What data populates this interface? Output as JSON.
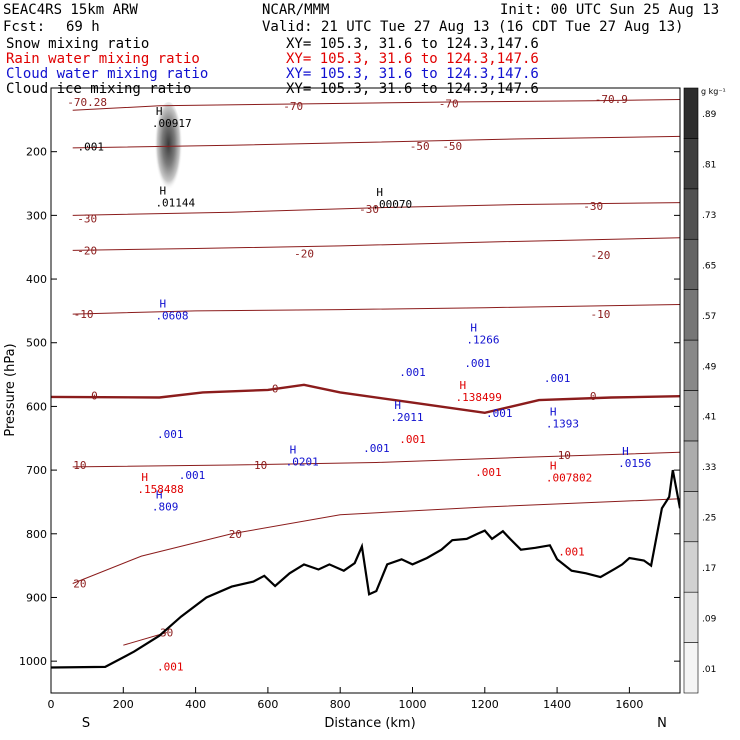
{
  "header": {
    "model": "SEAC4RS 15km ARW",
    "center": "NCAR/MMM",
    "init": "Init: 00 UTC Sun 25 Aug 13",
    "fcst_label": "Fcst:",
    "fcst_hours": "69 h",
    "valid": "Valid: 21 UTC Tue 27 Aug 13 (16 CDT Tue 27 Aug 13)",
    "fields": [
      {
        "label": "Snow mixing ratio",
        "xy": "",
        "color": "#000000"
      },
      {
        "label": "Rain water mixing ratio",
        "xy": "XY= 105.3, 31.6 to 124.3,147.6",
        "color": "#e00000"
      },
      {
        "label": "Cloud water mixing ratio",
        "xy": "XY= 105.3, 31.6 to 124.3,147.6",
        "color": "#1010d0"
      },
      {
        "label": "Cloud ice mixing ratio",
        "xy": "XY= 105.3, 31.6 to 124.3,147.6",
        "color": "#000000"
      }
    ],
    "snow_xy": "XY= 105.3, 31.6 to 124.3,147.6"
  },
  "chart_data": {
    "type": "contour-cross-section",
    "xlabel": "Distance (km)",
    "ylabel": "Pressure (hPa)",
    "xlim": [
      0,
      1740
    ],
    "ylim": [
      1050,
      100
    ],
    "x_ticks": [
      0,
      200,
      400,
      600,
      800,
      1000,
      1200,
      1400,
      1600
    ],
    "y_ticks": [
      200,
      300,
      400,
      500,
      600,
      700,
      800,
      900,
      1000
    ],
    "x_end_labels": {
      "left": "S",
      "right": "N"
    },
    "colorbar": {
      "unit": "g kg⁻¹",
      "levels": [
        0.01,
        0.09,
        0.17,
        0.25,
        0.33,
        0.41,
        0.49,
        0.57,
        0.65,
        0.73,
        0.81,
        0.89
      ],
      "level_labels": [
        ".01",
        ".09",
        ".17",
        ".25",
        ".33",
        ".41",
        ".49",
        ".57",
        ".65",
        ".73",
        ".81",
        ".89"
      ]
    },
    "terrain": [
      [
        0,
        1010
      ],
      [
        150,
        1009
      ],
      [
        230,
        985
      ],
      [
        300,
        960
      ],
      [
        360,
        930
      ],
      [
        430,
        900
      ],
      [
        500,
        883
      ],
      [
        560,
        875
      ],
      [
        590,
        866
      ],
      [
        620,
        882
      ],
      [
        660,
        862
      ],
      [
        700,
        848
      ],
      [
        740,
        856
      ],
      [
        770,
        848
      ],
      [
        810,
        858
      ],
      [
        840,
        846
      ],
      [
        860,
        820
      ],
      [
        880,
        895
      ],
      [
        900,
        890
      ],
      [
        930,
        848
      ],
      [
        970,
        840
      ],
      [
        1000,
        848
      ],
      [
        1040,
        838
      ],
      [
        1080,
        825
      ],
      [
        1110,
        810
      ],
      [
        1150,
        808
      ],
      [
        1180,
        800
      ],
      [
        1200,
        795
      ],
      [
        1220,
        808
      ],
      [
        1250,
        796
      ],
      [
        1270,
        808
      ],
      [
        1300,
        825
      ],
      [
        1340,
        822
      ],
      [
        1380,
        818
      ],
      [
        1400,
        840
      ],
      [
        1440,
        858
      ],
      [
        1480,
        862
      ],
      [
        1520,
        868
      ],
      [
        1560,
        855
      ],
      [
        1580,
        848
      ],
      [
        1600,
        838
      ],
      [
        1640,
        842
      ],
      [
        1660,
        850
      ],
      [
        1690,
        760
      ],
      [
        1710,
        742
      ],
      [
        1720,
        700
      ],
      [
        1740,
        760
      ]
    ],
    "temperature_contours": [
      {
        "label": "-70",
        "points": [
          [
            60,
            135
          ],
          [
            300,
            128
          ],
          [
            700,
            125
          ],
          [
            1100,
            122
          ],
          [
            1500,
            120
          ],
          [
            1740,
            118
          ]
        ],
        "label_positions": [
          [
            670,
            128
          ],
          [
            1100,
            124
          ]
        ]
      },
      {
        "label": "-70.9",
        "points": [],
        "label_positions": [
          [
            1550,
            117
          ]
        ]
      },
      {
        "label": "-70.28",
        "points": [],
        "label_positions": [
          [
            100,
            122
          ]
        ]
      },
      {
        "label": "-50",
        "points": [
          [
            60,
            194
          ],
          [
            500,
            190
          ],
          [
            900,
            185
          ],
          [
            1300,
            180
          ],
          [
            1740,
            176
          ]
        ],
        "label_positions": [
          [
            1020,
            191
          ],
          [
            1110,
            191
          ]
        ]
      },
      {
        "label": "-30",
        "points": [
          [
            60,
            300
          ],
          [
            500,
            295
          ],
          [
            900,
            288
          ],
          [
            1300,
            283
          ],
          [
            1740,
            280
          ]
        ],
        "label_positions": [
          [
            100,
            305
          ],
          [
            880,
            290
          ],
          [
            1500,
            285
          ]
        ]
      },
      {
        "label": "-20",
        "points": [
          [
            60,
            355
          ],
          [
            400,
            352
          ],
          [
            800,
            348
          ],
          [
            1200,
            342
          ],
          [
            1740,
            335
          ]
        ],
        "label_positions": [
          [
            100,
            355
          ],
          [
            700,
            360
          ],
          [
            1520,
            362
          ]
        ]
      },
      {
        "label": "-10",
        "points": [
          [
            60,
            455
          ],
          [
            400,
            450
          ],
          [
            800,
            448
          ],
          [
            1200,
            445
          ],
          [
            1740,
            440
          ]
        ],
        "label_positions": [
          [
            90,
            455
          ],
          [
            1520,
            455
          ]
        ]
      },
      {
        "label": "0",
        "points": [
          [
            0,
            585
          ],
          [
            300,
            586
          ],
          [
            420,
            578
          ],
          [
            600,
            574
          ],
          [
            700,
            566
          ],
          [
            800,
            578
          ],
          [
            1000,
            594
          ],
          [
            1200,
            610
          ],
          [
            1350,
            590
          ],
          [
            1550,
            586
          ],
          [
            1740,
            584
          ]
        ],
        "label_positions": [
          [
            120,
            583
          ],
          [
            620,
            572
          ],
          [
            1500,
            584
          ]
        ]
      },
      {
        "label": "10",
        "points": [
          [
            60,
            695
          ],
          [
            500,
            692
          ],
          [
            900,
            688
          ],
          [
            1300,
            680
          ],
          [
            1740,
            672
          ]
        ],
        "label_positions": [
          [
            80,
            692
          ],
          [
            580,
            692
          ],
          [
            1420,
            676
          ]
        ]
      },
      {
        "label": "20",
        "points": [
          [
            60,
            878
          ],
          [
            250,
            835
          ],
          [
            500,
            800
          ],
          [
            800,
            770
          ],
          [
            1200,
            758
          ],
          [
            1740,
            745
          ]
        ],
        "label_positions": [
          [
            80,
            878
          ],
          [
            510,
            800
          ]
        ]
      },
      {
        "label": "30",
        "points": [
          [
            200,
            975
          ],
          [
            320,
            955
          ]
        ],
        "label_positions": [
          [
            320,
            955
          ]
        ]
      }
    ],
    "maxima_labels": [
      {
        "text": ".00917",
        "x": 290,
        "p": 158,
        "color": "#000000"
      },
      {
        "text": ".01144",
        "x": 300,
        "p": 283,
        "color": "#000000"
      },
      {
        "text": ".00070",
        "x": 900,
        "p": 285,
        "color": "#000000"
      },
      {
        "text": ".0608",
        "x": 300,
        "p": 460,
        "color": "#1010d0"
      },
      {
        "text": ".1266",
        "x": 1160,
        "p": 498,
        "color": "#1010d0"
      },
      {
        "text": ".2011",
        "x": 950,
        "p": 620,
        "color": "#1010d0"
      },
      {
        "text": ".0201",
        "x": 660,
        "p": 690,
        "color": "#1010d0"
      },
      {
        "text": ".1393",
        "x": 1380,
        "p": 630,
        "color": "#1010d0"
      },
      {
        "text": ".0156",
        "x": 1580,
        "p": 692,
        "color": "#1010d0"
      },
      {
        "text": ".809",
        "x": 290,
        "p": 760,
        "color": "#1010d0"
      },
      {
        "text": ".138499",
        "x": 1130,
        "p": 588,
        "color": "#e00000"
      },
      {
        "text": ".158488",
        "x": 250,
        "p": 733,
        "color": "#e00000"
      },
      {
        "text": ".007802",
        "x": 1380,
        "p": 715,
        "color": "#e00000"
      }
    ],
    "contour_labels": [
      {
        "text": ".001",
        "x": 110,
        "p": 192,
        "color": "#000000"
      },
      {
        "text": ".001",
        "x": 1000,
        "p": 546,
        "color": "#1010d0"
      },
      {
        "text": ".001",
        "x": 1180,
        "p": 532,
        "color": "#1010d0"
      },
      {
        "text": ".001",
        "x": 1240,
        "p": 610,
        "color": "#1010d0"
      },
      {
        "text": ".001",
        "x": 1400,
        "p": 555,
        "color": "#1010d0"
      },
      {
        "text": ".001",
        "x": 900,
        "p": 665,
        "color": "#1010d0"
      },
      {
        "text": ".001",
        "x": 330,
        "p": 643,
        "color": "#1010d0"
      },
      {
        "text": ".001",
        "x": 390,
        "p": 708,
        "color": "#1010d0"
      },
      {
        "text": ".001",
        "x": 1210,
        "p": 703,
        "color": "#e00000"
      },
      {
        "text": ".001",
        "x": 1440,
        "p": 828,
        "color": "#e00000"
      },
      {
        "text": ".001",
        "x": 330,
        "p": 1008,
        "color": "#e00000"
      },
      {
        "text": ".001",
        "x": 1000,
        "p": 651,
        "color": "#e00000"
      }
    ],
    "cloud_ice_core": {
      "x": 325,
      "p_top": 150,
      "p_bottom": 240,
      "max": 0.6
    }
  }
}
